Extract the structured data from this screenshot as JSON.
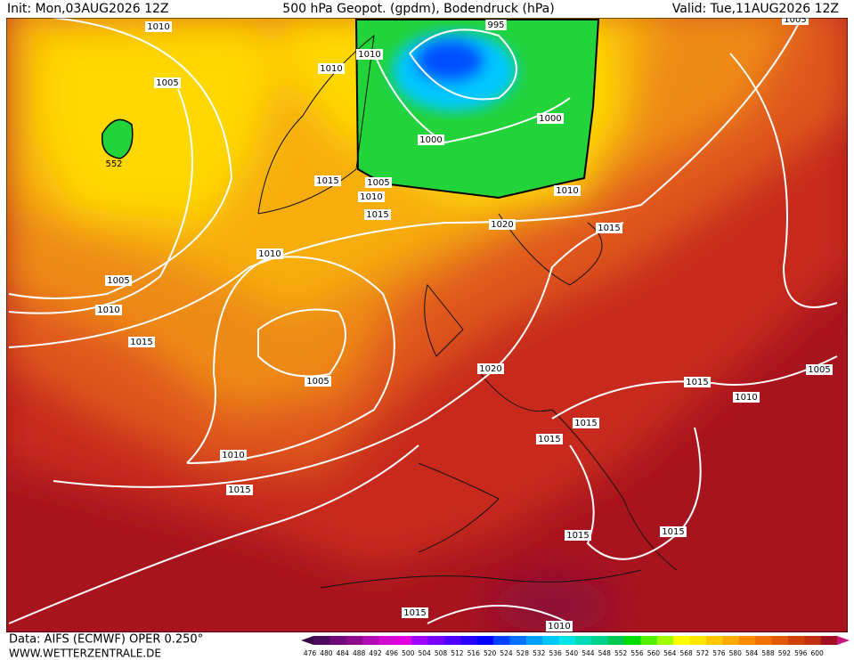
{
  "header": {
    "init": "Init: Mon,03AUG2026 12Z",
    "title": "500 hPa Geopot. (gpdm), Bodendruck (hPa)",
    "valid": "Valid: Tue,11AUG2026 12Z"
  },
  "isobar_labels": [
    1010,
    995,
    1005,
    1010,
    1010,
    1005,
    552,
    1000,
    1000,
    1015,
    1005,
    1010,
    1010,
    1015,
    1020,
    1015,
    1010,
    1005,
    1010,
    1015,
    1005,
    1020,
    1005,
    1015,
    1010,
    1015,
    1015,
    1010,
    1015,
    1015,
    1015,
    1015,
    1010
  ],
  "legend": {
    "ticks": [
      476,
      480,
      484,
      488,
      492,
      496,
      500,
      504,
      508,
      512,
      516,
      520,
      524,
      528,
      532,
      536,
      540,
      544,
      548,
      552,
      556,
      560,
      564,
      568,
      572,
      576,
      580,
      584,
      588,
      592,
      596,
      600
    ],
    "colors": [
      "#4b0a5a",
      "#6e0a7a",
      "#8c0a8c",
      "#b40ab4",
      "#d20ad2",
      "#e000e0",
      "#a000ff",
      "#7800ff",
      "#5000ff",
      "#2800ff",
      "#0000ff",
      "#0040ff",
      "#0070ff",
      "#00a0ff",
      "#00c8ff",
      "#00e6e6",
      "#00dcb4",
      "#00d28c",
      "#00c850",
      "#00dc00",
      "#50f000",
      "#a0ff00",
      "#ffff00",
      "#ffe600",
      "#ffc800",
      "#ffaa00",
      "#ff8c00",
      "#f07000",
      "#e05a00",
      "#d04000",
      "#c03010",
      "#a01020"
    ]
  },
  "footer": {
    "source": "Data: AIFS (ECMWF) OPER 0.250°",
    "site": "WWW.WETTERZENTRALE.DE"
  }
}
